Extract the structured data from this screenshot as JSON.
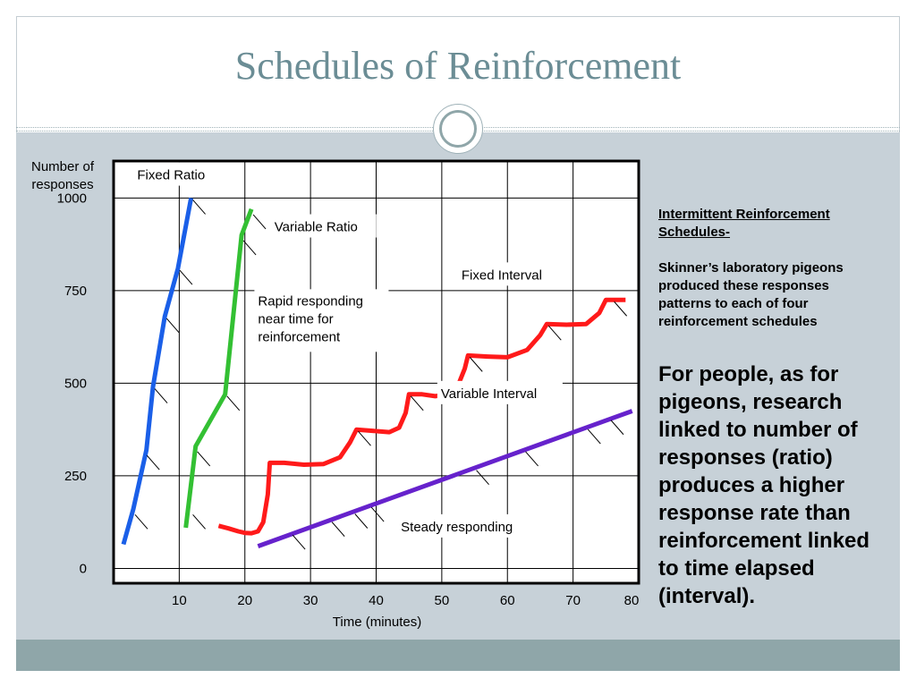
{
  "slide": {
    "title": "Schedules of Reinforcement",
    "side_heading": "Intermittent Reinforcement Schedules-",
    "side_body": "Skinner’s laboratory pigeons produced these responses patterns to each of four reinforcement schedules",
    "side_big": "For people, as for pigeons, research linked to number of responses (ratio) produces a higher response rate than reinforcement linked to time elapsed (interval).",
    "colors": {
      "title": "#6b8d95",
      "band": "#c7d1d8",
      "footer": "#8fa6a9"
    }
  },
  "chart_data": {
    "type": "line",
    "xlabel": "Time (minutes)",
    "ylabel": "Number of responses",
    "xlim": [
      0,
      80
    ],
    "ylim": [
      -40,
      1100
    ],
    "x_ticks": [
      10,
      20,
      30,
      40,
      50,
      60,
      70,
      80
    ],
    "y_ticks": [
      0,
      250,
      500,
      750,
      1000
    ],
    "grid": true,
    "series": [
      {
        "name": "Fixed Ratio",
        "color": "#1a5fe8",
        "points": [
          [
            1.5,
            65
          ],
          [
            3,
            160
          ],
          [
            5,
            320
          ],
          [
            6,
            490
          ],
          [
            7.8,
            680
          ],
          [
            9.8,
            810
          ],
          [
            11.8,
            1000
          ]
        ],
        "marks": [
          [
            3,
            150
          ],
          [
            4.8,
            310
          ],
          [
            6,
            490
          ],
          [
            7.8,
            680
          ],
          [
            9.8,
            810
          ],
          [
            11.8,
            1000
          ]
        ]
      },
      {
        "name": "Variable Ratio",
        "color": "#33c033",
        "points": [
          [
            11,
            110
          ],
          [
            12.5,
            330
          ],
          [
            17,
            470
          ],
          [
            19.5,
            900
          ],
          [
            21,
            970
          ]
        ],
        "marks": [
          [
            12.5,
            320
          ],
          [
            17,
            470
          ],
          [
            19.5,
            890
          ],
          [
            21,
            960
          ],
          [
            11.8,
            150
          ]
        ]
      },
      {
        "name": "Fixed Interval",
        "color": "#ff1a1a",
        "points": [
          [
            16,
            115
          ],
          [
            17.5,
            108
          ],
          [
            19,
            100
          ],
          [
            20,
            96
          ],
          [
            21,
            95
          ],
          [
            22,
            100
          ],
          [
            22.8,
            125
          ],
          [
            23.5,
            200
          ],
          [
            23.8,
            285
          ],
          [
            26,
            285
          ],
          [
            29,
            280
          ],
          [
            32,
            282
          ],
          [
            34.5,
            300
          ],
          [
            36,
            340
          ],
          [
            37,
            375
          ],
          [
            39,
            372
          ],
          [
            42,
            368
          ],
          [
            43.5,
            380
          ],
          [
            44.5,
            420
          ],
          [
            45,
            470
          ],
          [
            47,
            470
          ],
          [
            49,
            465
          ],
          [
            51,
            470
          ],
          [
            52.5,
            495
          ],
          [
            53.5,
            540
          ],
          [
            54,
            575
          ],
          [
            57,
            572
          ],
          [
            60,
            570
          ],
          [
            63,
            590
          ],
          [
            65,
            630
          ],
          [
            66,
            660
          ],
          [
            69,
            658
          ],
          [
            72,
            660
          ],
          [
            74,
            690
          ],
          [
            75,
            725
          ],
          [
            78,
            725
          ]
        ],
        "marks": [
          [
            37,
            375
          ],
          [
            45,
            470
          ],
          [
            54,
            575
          ],
          [
            66,
            660
          ],
          [
            76,
            725
          ]
        ]
      },
      {
        "name": "Variable Interval",
        "color": "#6622cc",
        "points": [
          [
            22,
            60
          ],
          [
            79,
            425
          ]
        ],
        "marks": [
          [
            27,
            95
          ],
          [
            33,
            130
          ],
          [
            36.5,
            152
          ],
          [
            39,
            170
          ],
          [
            55,
            270
          ],
          [
            62.5,
            320
          ],
          [
            72,
            380
          ],
          [
            75.5,
            405
          ]
        ]
      }
    ],
    "annotations": [
      {
        "text": "Fixed Ratio",
        "x": 7,
        "y": 1060
      },
      {
        "text": "Variable Ratio",
        "x": 24.5,
        "y": 920
      },
      {
        "text": "Fixed Interval",
        "x": 53,
        "y": 790
      },
      {
        "text": "Rapid responding near time for reinforcement",
        "x": 22,
        "y": 720
      },
      {
        "text": "Variable Interval",
        "x": 50,
        "y": 470
      },
      {
        "text": "Steady responding",
        "x": 43.5,
        "y": 110
      }
    ]
  }
}
